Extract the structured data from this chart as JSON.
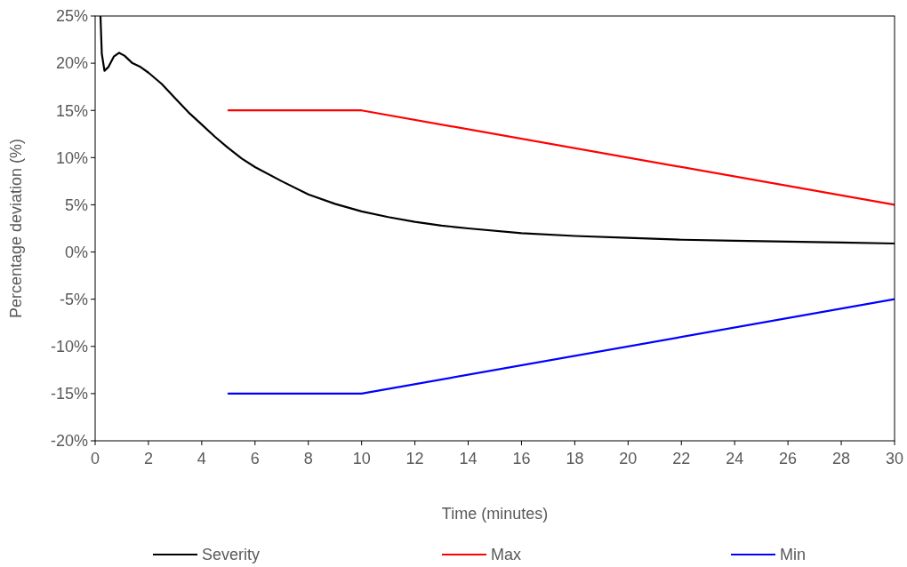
{
  "chart_data": {
    "type": "line",
    "xlabel": "Time (minutes)",
    "ylabel": "Percentage deviation (%)",
    "xlim": [
      0,
      30
    ],
    "xticks": [
      0,
      2,
      4,
      6,
      8,
      10,
      12,
      14,
      16,
      18,
      20,
      22,
      24,
      26,
      28,
      30
    ],
    "ylim": [
      -20,
      25
    ],
    "yticks": [
      {
        "value": -20,
        "label": "-20%"
      },
      {
        "value": -15,
        "label": "-15%"
      },
      {
        "value": -10,
        "label": "-10%"
      },
      {
        "value": -5,
        "label": "-5%"
      },
      {
        "value": 0,
        "label": "0%"
      },
      {
        "value": 5,
        "label": "5%"
      },
      {
        "value": 10,
        "label": "10%"
      },
      {
        "value": 15,
        "label": "15%"
      },
      {
        "value": 20,
        "label": "20%"
      },
      {
        "value": 25,
        "label": "25%"
      }
    ],
    "grid": false,
    "legend": "bottom",
    "marker": "none",
    "line_style": "solid",
    "series": [
      {
        "name": "Severity",
        "color": "#000000",
        "x": [
          0.2,
          0.25,
          0.35,
          0.5,
          0.7,
          0.9,
          1.1,
          1.4,
          1.7,
          2,
          2.5,
          3,
          3.5,
          4,
          4.5,
          5,
          5.5,
          6,
          7,
          8,
          9,
          10,
          11,
          12,
          13,
          14,
          16,
          18,
          20,
          22,
          24,
          26,
          28,
          30
        ],
        "values": [
          25,
          21,
          19.2,
          19.6,
          20.7,
          21.1,
          20.8,
          20,
          19.6,
          19,
          17.8,
          16.3,
          14.8,
          13.5,
          12.2,
          11,
          9.9,
          9,
          7.5,
          6.1,
          5.1,
          4.3,
          3.7,
          3.2,
          2.8,
          2.5,
          2,
          1.7,
          1.5,
          1.3,
          1.2,
          1.1,
          1,
          0.9
        ]
      },
      {
        "name": "Max",
        "color": "#ff0000",
        "x": [
          5,
          10,
          30
        ],
        "values": [
          15,
          15,
          5
        ]
      },
      {
        "name": "Min",
        "color": "#0000ff",
        "x": [
          5,
          10,
          30
        ],
        "values": [
          -15,
          -15,
          -5
        ]
      }
    ]
  }
}
